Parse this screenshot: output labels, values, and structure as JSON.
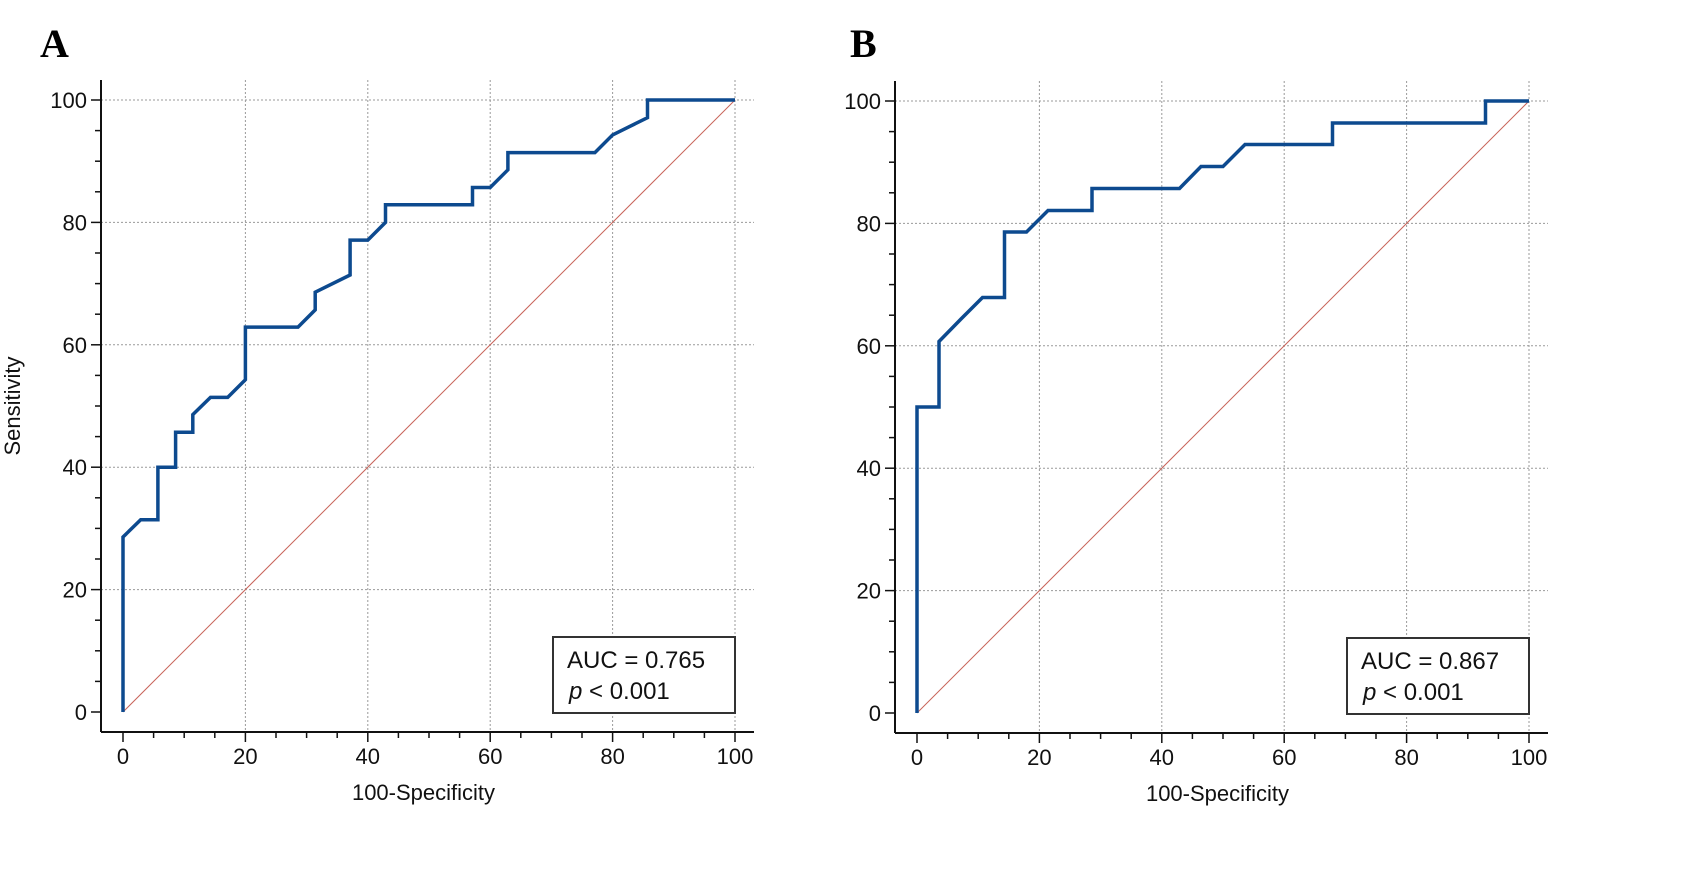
{
  "panels": [
    {
      "letter": "A"
    },
    {
      "letter": "B"
    }
  ],
  "chart_data": [
    {
      "type": "line",
      "panel": "A",
      "xlabel": "100-Specificity",
      "ylabel": "Sensitivity",
      "xlim": [
        0,
        100
      ],
      "ylim": [
        0,
        100
      ],
      "xticks": [
        0,
        20,
        40,
        60,
        80,
        100
      ],
      "yticks": [
        0,
        20,
        40,
        60,
        80,
        100
      ],
      "grid": true,
      "annotation": {
        "auc": "AUC = 0.765",
        "p_label": "p",
        "p_value": " < 0.001",
        "placement": "bottom-right"
      },
      "reference_line": {
        "x": [
          0,
          100
        ],
        "y": [
          0,
          100
        ],
        "color": "#c8645a"
      },
      "series": [
        {
          "color": "#0d4a8f",
          "x": [
            0,
            0,
            2.9,
            5.7,
            5.7,
            8.6,
            8.6,
            11.4,
            11.4,
            14.3,
            17.1,
            20,
            20,
            28.6,
            31.4,
            31.4,
            37.1,
            37.1,
            40,
            42.9,
            42.9,
            57.1,
            57.1,
            60,
            62.9,
            62.9,
            77.1,
            80,
            85.7,
            85.7,
            100
          ],
          "y": [
            0,
            28.6,
            31.4,
            31.4,
            40,
            40,
            45.7,
            45.7,
            48.6,
            51.4,
            51.4,
            54.3,
            62.9,
            62.9,
            65.7,
            68.6,
            71.4,
            77.1,
            77.1,
            80,
            82.9,
            82.9,
            85.7,
            85.7,
            88.6,
            91.4,
            91.4,
            94.3,
            97.1,
            100,
            100
          ]
        }
      ]
    },
    {
      "type": "line",
      "panel": "B",
      "xlabel": "100-Specificity",
      "ylabel": "Sensitivity",
      "xlim": [
        0,
        100
      ],
      "ylim": [
        0,
        100
      ],
      "xticks": [
        0,
        20,
        40,
        60,
        80,
        100
      ],
      "yticks": [
        0,
        20,
        40,
        60,
        80,
        100
      ],
      "grid": true,
      "annotation": {
        "auc": "AUC = 0.867",
        "p_label": "p",
        "p_value": " < 0.001",
        "placement": "bottom-right"
      },
      "reference_line": {
        "x": [
          0,
          100
        ],
        "y": [
          0,
          100
        ],
        "color": "#c8645a"
      },
      "series": [
        {
          "color": "#0d4a8f",
          "x": [
            0,
            0,
            3.6,
            3.6,
            7.1,
            10.7,
            14.3,
            14.3,
            17.9,
            21.4,
            28.6,
            28.6,
            42.9,
            46.4,
            50,
            53.6,
            67.9,
            67.9,
            92.9,
            92.9,
            100
          ],
          "y": [
            0,
            50,
            50,
            60.7,
            64.3,
            67.9,
            67.9,
            78.6,
            78.6,
            82.1,
            82.1,
            85.7,
            85.7,
            89.3,
            89.3,
            92.9,
            92.9,
            96.4,
            96.4,
            100,
            100
          ]
        }
      ]
    }
  ]
}
